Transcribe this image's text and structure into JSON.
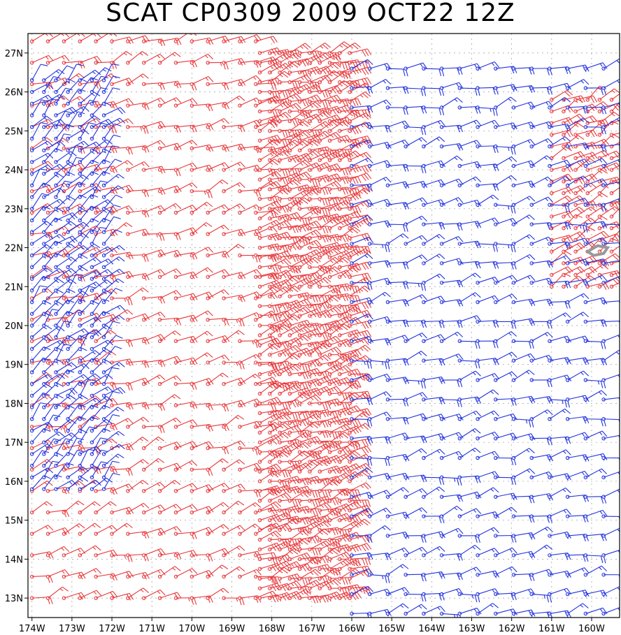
{
  "title": "SCAT CP0309 2009 OCT22 12Z",
  "map": {
    "lon_min": -174.1,
    "lon_max": -159.3,
    "lat_min": 12.5,
    "lat_max": 27.5,
    "lon_ticks": [
      {
        "lon": -174,
        "label": "174W"
      },
      {
        "lon": -173,
        "label": "173W"
      },
      {
        "lon": -172,
        "label": "172W"
      },
      {
        "lon": -171,
        "label": "171W"
      },
      {
        "lon": -170,
        "label": "170W"
      },
      {
        "lon": -169,
        "label": "169W"
      },
      {
        "lon": -168,
        "label": "168W"
      },
      {
        "lon": -167,
        "label": "167W"
      },
      {
        "lon": -166,
        "label": "166W"
      },
      {
        "lon": -165,
        "label": "165W"
      },
      {
        "lon": -164,
        "label": "164W"
      },
      {
        "lon": -163,
        "label": "163W"
      },
      {
        "lon": -162,
        "label": "162W"
      },
      {
        "lon": -161,
        "label": "161W"
      },
      {
        "lon": -160,
        "label": "160W"
      }
    ],
    "lat_ticks": [
      {
        "lat": 13,
        "label": "13N"
      },
      {
        "lat": 14,
        "label": "14N"
      },
      {
        "lat": 15,
        "label": "15N"
      },
      {
        "lat": 16,
        "label": "16N"
      },
      {
        "lat": 17,
        "label": "17N"
      },
      {
        "lat": 18,
        "label": "18N"
      },
      {
        "lat": 19,
        "label": "19N"
      },
      {
        "lat": 20,
        "label": "20N"
      },
      {
        "lat": 21,
        "label": "21N"
      },
      {
        "lat": 22,
        "label": "22N"
      },
      {
        "lat": 23,
        "label": "23N"
      },
      {
        "lat": 24,
        "label": "24N"
      },
      {
        "lat": 25,
        "label": "25N"
      },
      {
        "lat": 26,
        "label": "26N"
      },
      {
        "lat": 27,
        "label": "27N"
      }
    ],
    "colors": {
      "pass_a": "#e8383b",
      "pass_b": "#2233dd",
      "land": "#999999",
      "grid": "#999999",
      "frame": "#000000"
    },
    "island_lonlat": [
      [
        -160.1,
        21.9
      ],
      [
        -159.85,
        22.05
      ],
      [
        -159.6,
        22.0
      ],
      [
        -159.7,
        21.85
      ],
      [
        -159.95,
        21.8
      ]
    ],
    "swaths": [
      {
        "name": "pass-a-west",
        "color_key": "pass_a",
        "lon_range": [
          -174.0,
          -168.1
        ],
        "lat_range": [
          13.0,
          27.4
        ],
        "dlon": 0.4,
        "dlat": 0.55,
        "dir_deg": 70,
        "speed_kt": 20
      },
      {
        "name": "pass-a-edge",
        "color_key": "pass_a",
        "lon_range": [
          -168.3,
          -166.0
        ],
        "lat_range": [
          13.0,
          27.0
        ],
        "dlon": 0.25,
        "dlat": 0.25,
        "dir_deg": 70,
        "speed_kt": 30
      },
      {
        "name": "pass-a-east",
        "color_key": "pass_a",
        "lon_range": [
          -161.0,
          -159.3
        ],
        "lat_range": [
          21.0,
          26.0
        ],
        "dlon": 0.3,
        "dlat": 0.3,
        "dir_deg": 60,
        "speed_kt": 20
      },
      {
        "name": "pass-b-west",
        "color_key": "pass_b",
        "lon_range": [
          -174.0,
          -172.2
        ],
        "lat_range": [
          15.8,
          26.5
        ],
        "dlon": 0.3,
        "dlat": 0.3,
        "dir_deg": 45,
        "speed_kt": 15
      },
      {
        "name": "pass-b-east",
        "color_key": "pass_b",
        "lon_range": [
          -166.0,
          -159.3
        ],
        "lat_range": [
          12.6,
          27.0
        ],
        "dlon": 0.45,
        "dlat": 0.5,
        "dir_deg": 75,
        "speed_kt": 20
      }
    ]
  }
}
